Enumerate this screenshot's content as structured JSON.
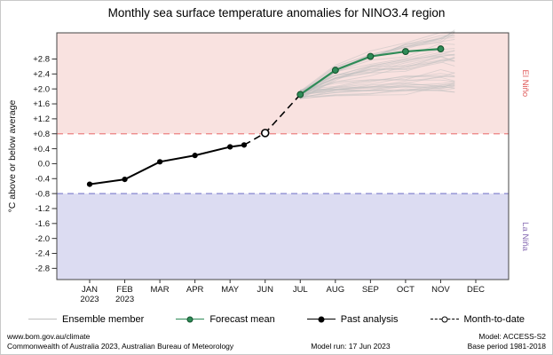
{
  "chart_data": {
    "type": "line",
    "title": "Monthly sea surface temperature anomalies for NINO3.4 region",
    "ylabel": "°C above or below average",
    "ylim": [
      -3.1,
      3.5
    ],
    "yticks": [
      2.8,
      2.4,
      2.0,
      1.6,
      1.2,
      0.8,
      0.4,
      0.0,
      -0.4,
      -0.8,
      -1.2,
      -1.6,
      -2.0,
      -2.4,
      -2.8
    ],
    "categories": [
      "JAN",
      "FEB",
      "MAR",
      "APR",
      "MAY",
      "JUN",
      "JUL",
      "AUG",
      "SEP",
      "OCT",
      "NOV",
      "DEC"
    ],
    "category_years": [
      "2023",
      "2023",
      "",
      "",
      "",
      "",
      "",
      "",
      "",
      "",
      "",
      ""
    ],
    "thresholds": {
      "el_nino": 0.8,
      "la_nina": -0.8
    },
    "region_labels": {
      "el_nino": "El Niño",
      "la_nina": "La Niña"
    },
    "series": [
      {
        "name": "Past analysis",
        "x": [
          1,
          2,
          3,
          4,
          5,
          5.4
        ],
        "values": [
          -0.55,
          -0.42,
          0.05,
          0.22,
          0.45,
          0.5
        ]
      },
      {
        "name": "Month-to-date",
        "x": [
          6
        ],
        "values": [
          0.82
        ]
      },
      {
        "name": "Forecast mean",
        "x": [
          7,
          8,
          9,
          10,
          11
        ],
        "values": [
          1.85,
          2.5,
          2.87,
          3.0,
          3.07
        ]
      }
    ],
    "connector": {
      "x": [
        5.4,
        6,
        7
      ],
      "values": [
        0.5,
        0.82,
        1.85
      ]
    },
    "ensemble": {
      "name": "Ensemble member",
      "x": [
        7,
        8,
        9,
        10,
        11,
        11.4
      ],
      "count": 42,
      "start_range": [
        1.72,
        1.98
      ],
      "end_range": [
        1.9,
        3.5
      ]
    },
    "colors": {
      "el_nino_region": "#f9e2e0",
      "la_nina_region": "#dcdcf2",
      "el_nino_line": "#ec8181",
      "la_nina_line": "#8585cf",
      "el_nino_text": "#e05c5c",
      "la_nina_text": "#8a6fb5",
      "forecast": "#2e8b57",
      "forecast_edge": "#14532d",
      "past": "#000000",
      "month_to_date": "#000000",
      "ensemble": "#bfbfbf",
      "axis": "#333333"
    },
    "legend_position": "bottom",
    "grid": false
  },
  "legend": {
    "items": [
      {
        "label": "Ensemble member"
      },
      {
        "label": "Forecast mean"
      },
      {
        "label": "Past analysis"
      },
      {
        "label": "Month-to-date"
      }
    ]
  },
  "footer": {
    "site": "www.bom.gov.au/climate",
    "copyright": "Commonwealth of Australia 2023, Australian Bureau of Meteorology",
    "model_run": "Model run: 17 Jun 2023",
    "model": "Model: ACCESS-S2",
    "base_period": "Base period 1981-2018"
  }
}
